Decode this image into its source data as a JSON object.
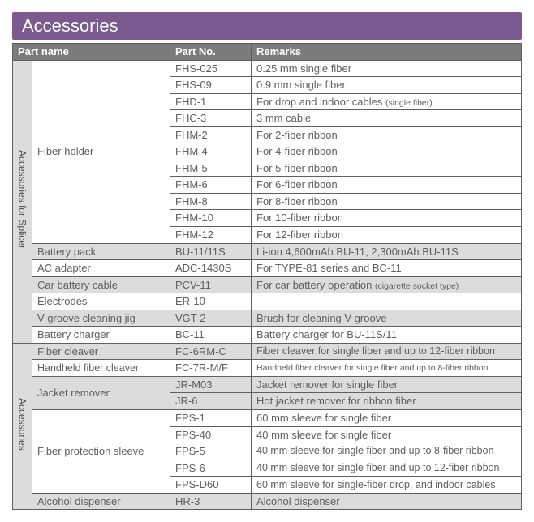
{
  "title": "Accessories",
  "headers": {
    "name": "Part name",
    "partno": "Part No.",
    "remarks": "Remarks"
  },
  "group1": {
    "label": "Accessories for Splicer",
    "fiber_holder": {
      "name": "Fiber holder",
      "rows": [
        {
          "pn": "FHS-025",
          "rm": "0.25 mm single fiber"
        },
        {
          "pn": "FHS-09",
          "rm": "0.9 mm single fiber"
        },
        {
          "pn": "FHD-1",
          "rm": "For drop and indoor cables ",
          "rm_small": "(single fiber)"
        },
        {
          "pn": "FHC-3",
          "rm": "3 mm cable"
        },
        {
          "pn": "FHM-2",
          "rm": "For 2-fiber ribbon"
        },
        {
          "pn": "FHM-4",
          "rm": "For 4-fiber ribbon"
        },
        {
          "pn": "FHM-5",
          "rm": "For 5-fiber ribbon"
        },
        {
          "pn": "FHM-6",
          "rm": "For 6-fiber ribbon"
        },
        {
          "pn": "FHM-8",
          "rm": "For 8-fiber ribbon"
        },
        {
          "pn": "FHM-10",
          "rm": "For 10-fiber ribbon"
        },
        {
          "pn": "FHM-12",
          "rm": "For 12-fiber ribbon"
        }
      ]
    },
    "rows": [
      {
        "name": "Battery pack",
        "pn": "BU-11/11S",
        "rm": "Li-ion 4,600mAh BU-11, 2,300mAh BU-11S"
      },
      {
        "name": "AC adapter",
        "pn": "ADC-1430S",
        "rm": "For TYPE-81 series and BC-11"
      },
      {
        "name": "Car battery cable",
        "pn": "PCV-11",
        "rm": "For car battery operation ",
        "rm_small": "(cigarette socket type)"
      },
      {
        "name": "Electrodes",
        "pn": "ER-10",
        "rm": "—"
      },
      {
        "name": "V-groove cleaning jig",
        "pn": "VGT-2",
        "rm": "Brush for cleaning V-groove"
      },
      {
        "name": "Battery charger",
        "pn": "BC-11",
        "rm": "Battery charger for BU-11S/11"
      }
    ]
  },
  "group2": {
    "label": "Accessories",
    "cleaver1": {
      "name": "Fiber cleaver",
      "pn": "FC-6RM-C",
      "rm": "Fiber cleaver for single fiber and up to 12-fiber ribbon"
    },
    "cleaver2": {
      "name": "Handheld fiber cleaver",
      "pn": "FC-7R-M/F",
      "rm": "Handheld fiber cleaver for single fiber and up to 8-fiber ribbon"
    },
    "jacket": {
      "name": "Jacket remover",
      "rows": [
        {
          "pn": "JR-M03",
          "rm": "Jacket remover for single fiber"
        },
        {
          "pn": "JR-6",
          "rm": "Hot jacket remover for ribbon fiber"
        }
      ]
    },
    "sleeve": {
      "name": "Fiber protection sleeve",
      "rows": [
        {
          "pn": "FPS-1",
          "rm": "60 mm sleeve for single fiber"
        },
        {
          "pn": "FPS-40",
          "rm": "40 mm sleeve for single fiber"
        },
        {
          "pn": "FPS-5",
          "rm": "40 mm sleeve for single fiber and up to 8-fiber ribbon"
        },
        {
          "pn": "FPS-6",
          "rm": "40 mm sleeve for single fiber and up to 12-fiber ribbon"
        },
        {
          "pn": "FPS-D60",
          "rm": "60 mm sleeve for single-fiber drop, and indoor cables"
        }
      ]
    },
    "alcohol": {
      "name": "Alcohol dispenser",
      "pn": "HR-3",
      "rm": "Alcohol dispenser"
    }
  }
}
